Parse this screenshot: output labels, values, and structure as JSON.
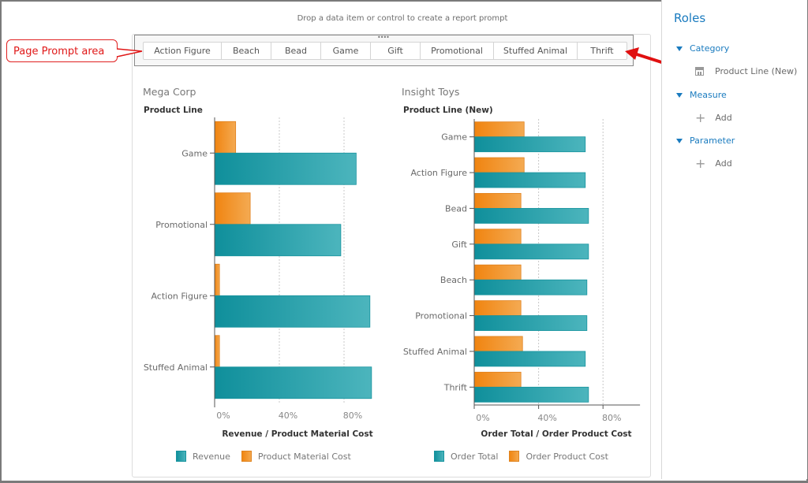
{
  "hint_text": "Drop a data item or control to create a report prompt",
  "callout_label": "Page Prompt area",
  "prompt_buttons": [
    "Action Figure",
    "Beach",
    "Bead",
    "Game",
    "Gift",
    "Promotional",
    "Stuffed Animal",
    "Thrift"
  ],
  "roles": {
    "title": "Roles",
    "category_label": "Category",
    "category_item": "Product Line (New)",
    "measure_label": "Measure",
    "measure_add": "Add",
    "parameter_label": "Parameter",
    "parameter_add": "Add"
  },
  "colors": {
    "teal": "#1a9aa5",
    "orange": "#f0901e",
    "accent_blue": "#1a7bbf",
    "callout_red": "#e01818"
  },
  "chart_data": [
    {
      "type": "bar",
      "orientation": "horizontal",
      "title": "Mega Corp",
      "ylabel": "Product Line",
      "xlabel": "Revenue / Product Material Cost",
      "categories": [
        "Game",
        "Promotional",
        "Action Figure",
        "Stuffed Animal"
      ],
      "series": [
        {
          "name": "Product Material Cost",
          "color": "#f0901e",
          "values": [
            13,
            22,
            3,
            3
          ]
        },
        {
          "name": "Revenue",
          "color": "#1a9aa5",
          "values": [
            87.5,
            78,
            96,
            97
          ]
        }
      ],
      "legend": [
        "Revenue",
        "Product Material Cost"
      ],
      "xticks": [
        "0%",
        "40%",
        "80%"
      ],
      "xtick_values": [
        0,
        40,
        80
      ],
      "xlim": [
        0,
        100
      ],
      "grid": true,
      "legend_position": "bottom"
    },
    {
      "type": "bar",
      "orientation": "horizontal",
      "title": "Insight Toys",
      "ylabel": "Product Line (New)",
      "xlabel": "Order Total / Order Product Cost",
      "categories": [
        "Game",
        "Action Figure",
        "Bead",
        "Gift",
        "Beach",
        "Promotional",
        "Stuffed Animal",
        "Thrift"
      ],
      "series": [
        {
          "name": "Order Product Cost",
          "color": "#f0901e",
          "values": [
            31,
            31,
            29,
            29,
            29,
            29,
            30,
            29
          ]
        },
        {
          "name": "Order Total",
          "color": "#1a9aa5",
          "values": [
            69,
            69,
            71,
            71,
            70,
            70,
            69,
            71
          ]
        }
      ],
      "legend": [
        "Order Total",
        "Order Product Cost"
      ],
      "xticks": [
        "0%",
        "40%",
        "80%"
      ],
      "xtick_values": [
        0,
        40,
        80
      ],
      "xlim": [
        0,
        103
      ],
      "grid": true,
      "legend_position": "bottom"
    }
  ]
}
